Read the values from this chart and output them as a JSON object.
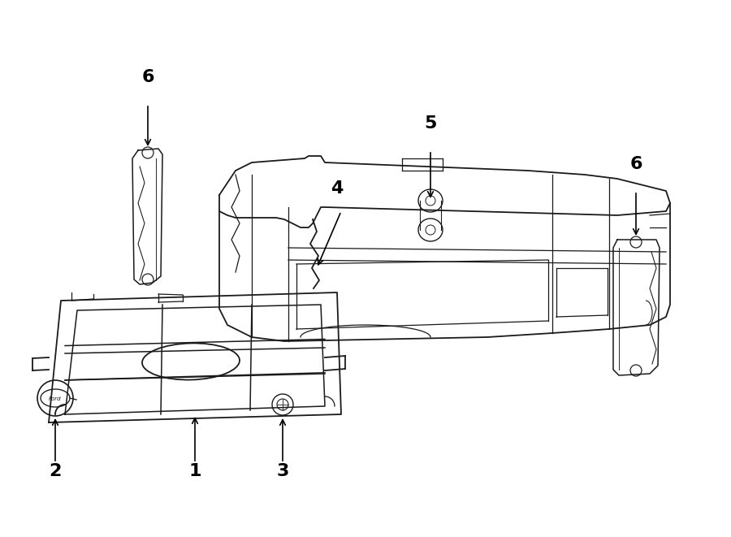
{
  "background_color": "#ffffff",
  "line_color": "#1a1a1a",
  "fig_width": 9.0,
  "fig_height": 6.61
}
